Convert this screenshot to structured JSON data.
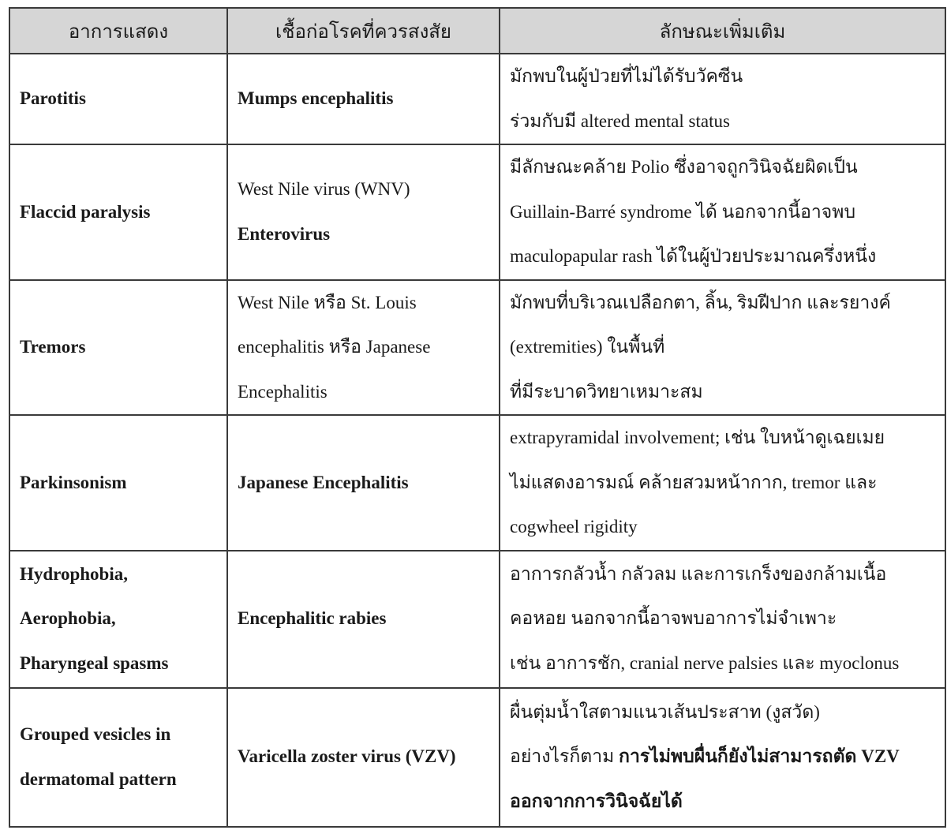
{
  "table": {
    "headers": [
      "อาการแสดง",
      "เชื้อก่อโรคที่ควรสงสัย",
      "ลักษณะเพิ่มเติม"
    ],
    "rows": [
      {
        "symptom": [
          [
            {
              "t": "Parotitis",
              "b": true
            }
          ]
        ],
        "pathogen": [
          [
            {
              "t": "Mumps encephalitis",
              "b": true
            }
          ]
        ],
        "notes": [
          [
            {
              "t": "มักพบในผู้ป่วยที่ไม่ได้รับวัคซีน"
            }
          ],
          [
            {
              "t": "ร่วมกับมี altered mental status"
            }
          ]
        ]
      },
      {
        "symptom": [
          [
            {
              "t": "Flaccid paralysis",
              "b": true
            }
          ]
        ],
        "pathogen": [
          [
            {
              "t": "West Nile virus (WNV)"
            }
          ],
          [
            {
              "t": "Enterovirus",
              "b": true
            }
          ]
        ],
        "notes": [
          [
            {
              "t": "มีลักษณะคล้าย Polio ซึ่งอาจถูกวินิจฉัยผิดเป็น"
            }
          ],
          [
            {
              "t": "Guillain-Barré syndrome ได้ นอกจากนี้อาจพบ"
            }
          ],
          [
            {
              "t": "maculopapular rash ได้ในผู้ป่วยประมาณครึ่งหนึ่ง"
            }
          ]
        ]
      },
      {
        "symptom": [
          [
            {
              "t": "Tremors",
              "b": true
            }
          ]
        ],
        "pathogen": [
          [
            {
              "t": "West Nile หรือ St. Louis"
            }
          ],
          [
            {
              "t": "encephalitis หรือ Japanese"
            }
          ],
          [
            {
              "t": "Encephalitis"
            }
          ]
        ],
        "notes": [
          [
            {
              "t": "มักพบที่บริเวณเปลือกตา, ลิ้น, ริมฝีปาก และรยางค์"
            }
          ],
          [
            {
              "t": "(extremities) ในพื้นที่"
            }
          ],
          [
            {
              "t": "ที่มีระบาดวิทยาเหมาะสม"
            }
          ]
        ]
      },
      {
        "symptom": [
          [
            {
              "t": "Parkinsonism",
              "b": true
            }
          ]
        ],
        "pathogen": [
          [
            {
              "t": "Japanese Encephalitis",
              "b": true
            }
          ]
        ],
        "notes": [
          [
            {
              "t": "extrapyramidal involvement; เช่น ใบหน้าดูเฉยเมย"
            }
          ],
          [
            {
              "t": "ไม่แสดงอารมณ์ คล้ายสวมหน้ากาก, tremor และ"
            }
          ],
          [
            {
              "t": "cogwheel rigidity"
            }
          ]
        ]
      },
      {
        "symptom": [
          [
            {
              "t": "Hydrophobia,",
              "b": true
            }
          ],
          [
            {
              "t": "Aerophobia,",
              "b": true
            }
          ],
          [
            {
              "t": "Pharyngeal spasms",
              "b": true
            }
          ]
        ],
        "pathogen": [
          [
            {
              "t": "Encephalitic rabies",
              "b": true
            }
          ]
        ],
        "notes": [
          [
            {
              "t": "อาการกลัวน้ำ กลัวลม และการเกร็งของกล้ามเนื้อ"
            }
          ],
          [
            {
              "t": "คอหอย นอกจากนี้อาจพบอาการไม่จำเพาะ"
            }
          ],
          [
            {
              "t": "เช่น อาการชัก, cranial nerve palsies และ myoclonus"
            }
          ]
        ]
      },
      {
        "symptom": [
          [
            {
              "t": "Grouped vesicles in",
              "b": true
            }
          ],
          [
            {
              "t": "dermatomal pattern",
              "b": true
            }
          ]
        ],
        "pathogen": [
          [
            {
              "t": "Varicella zoster virus (VZV)",
              "b": true
            }
          ]
        ],
        "notes": [
          [
            {
              "t": "ผื่นตุ่มน้ำใสตามแนวเส้นประสาท (งูสวัด)"
            }
          ],
          [
            {
              "t": "อย่างไรก็ตาม "
            },
            {
              "t": "การไม่พบผื่นก็ยังไม่สามารถตัด VZV",
              "b": true
            }
          ],
          [
            {
              "t": "ออกจากการวินิจฉัยได้",
              "b": true
            }
          ]
        ]
      }
    ]
  }
}
